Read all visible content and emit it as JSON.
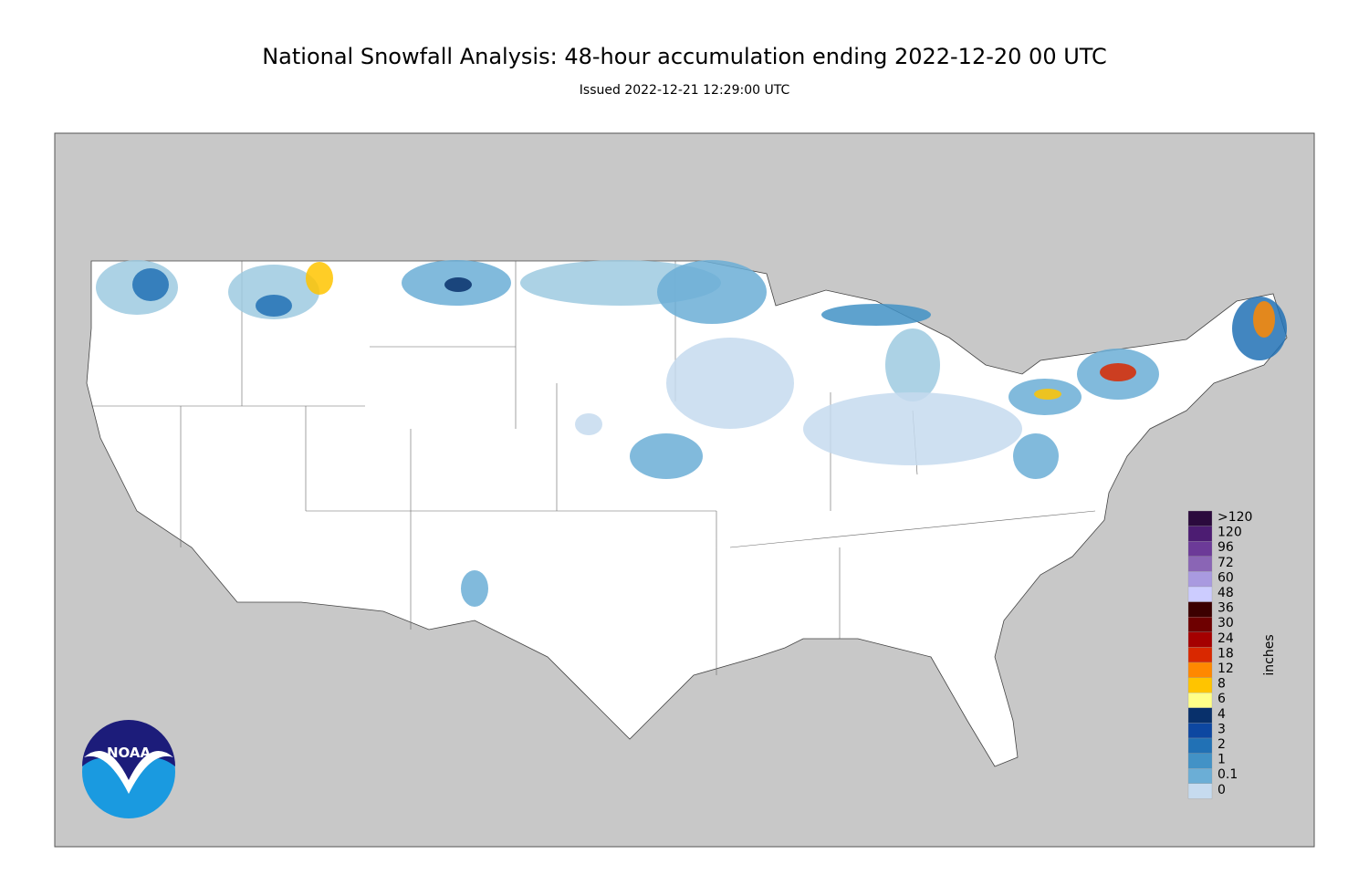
{
  "header": {
    "title": "National Snowfall Analysis: 48-hour accumulation ending 2022-12-20 00 UTC",
    "subtitle": "Issued 2022-12-21 12:29:00 UTC"
  },
  "legend": {
    "unit": "inches",
    "entries": [
      {
        "label": ">120",
        "color": "#2b0a3d"
      },
      {
        "label": "120",
        "color": "#4c1c72"
      },
      {
        "label": "96",
        "color": "#6c3a98"
      },
      {
        "label": "72",
        "color": "#8a65b5"
      },
      {
        "label": "60",
        "color": "#a99ae0"
      },
      {
        "label": "48",
        "color": "#ccccff"
      },
      {
        "label": "36",
        "color": "#3c0000"
      },
      {
        "label": "30",
        "color": "#6e0000"
      },
      {
        "label": "24",
        "color": "#a50000"
      },
      {
        "label": "18",
        "color": "#d92800"
      },
      {
        "label": "12",
        "color": "#ff8800"
      },
      {
        "label": "8",
        "color": "#ffc400"
      },
      {
        "label": "6",
        "color": "#ffff88"
      },
      {
        "label": "4",
        "color": "#08306b"
      },
      {
        "label": "3",
        "color": "#0d47a1"
      },
      {
        "label": "2",
        "color": "#2171b5"
      },
      {
        "label": "1",
        "color": "#4292c6"
      },
      {
        "label": "0.1",
        "color": "#6baed6"
      },
      {
        "label": "0",
        "color": "#c6dbef"
      }
    ]
  },
  "logo": {
    "text": "NOAA"
  }
}
